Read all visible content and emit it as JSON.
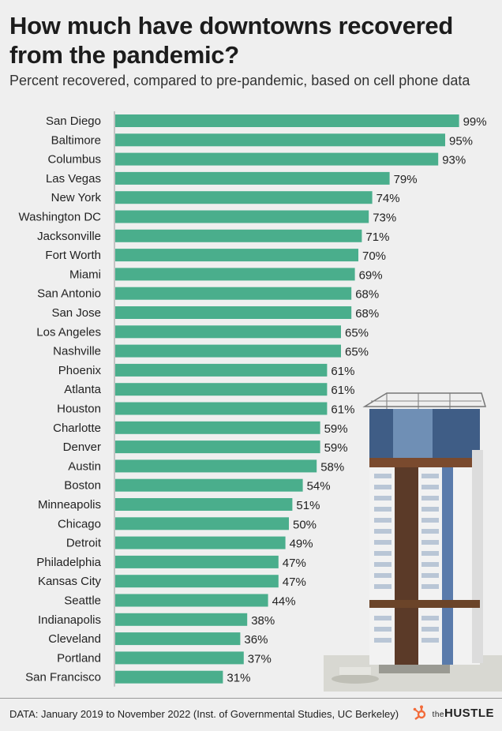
{
  "title": "How much have downtowns recovered from the pandemic?",
  "subtitle": "Percent recovered, compared to pre-pandemic, based on cell phone data",
  "source": "DATA: January 2019 to November 2022 (Inst. of Governmental Studies, UC Berkeley)",
  "logo": {
    "prefix": "the",
    "name": "HUSTLE"
  },
  "colors": {
    "bar": "#4aae8c",
    "background": "#efefef",
    "logo_accent": "#f26b3a"
  },
  "chart_data": {
    "type": "bar",
    "orientation": "horizontal",
    "categories": [
      "San Diego",
      "Baltimore",
      "Columbus",
      "Las Vegas",
      "New York",
      "Washington DC",
      "Jacksonville",
      "Fort Worth",
      "Miami",
      "San Antonio",
      "San Jose",
      "Los Angeles",
      "Nashville",
      "Phoenix",
      "Atlanta",
      "Houston",
      "Charlotte",
      "Denver",
      "Austin",
      "Boston",
      "Minneapolis",
      "Chicago",
      "Detroit",
      "Philadelphia",
      "Kansas City",
      "Seattle",
      "Indianapolis",
      "Cleveland",
      "Portland",
      "San Francisco"
    ],
    "values": [
      99,
      95,
      93,
      79,
      74,
      73,
      71,
      70,
      69,
      68,
      68,
      65,
      65,
      61,
      61,
      61,
      59,
      59,
      58,
      54,
      51,
      50,
      49,
      47,
      47,
      44,
      38,
      36,
      37,
      31
    ],
    "labels": [
      "99%",
      "95%",
      "93%",
      "79%",
      "74%",
      "73%",
      "71%",
      "70%",
      "69%",
      "68%",
      "68%",
      "65%",
      "65%",
      "61%",
      "61%",
      "61%",
      "59%",
      "59%",
      "58%",
      "54%",
      "51%",
      "50%",
      "49%",
      "47%",
      "47%",
      "44%",
      "38%",
      "36%",
      "37%",
      "31%"
    ],
    "xlim": [
      0,
      100
    ],
    "grid": false,
    "legend": "none"
  }
}
